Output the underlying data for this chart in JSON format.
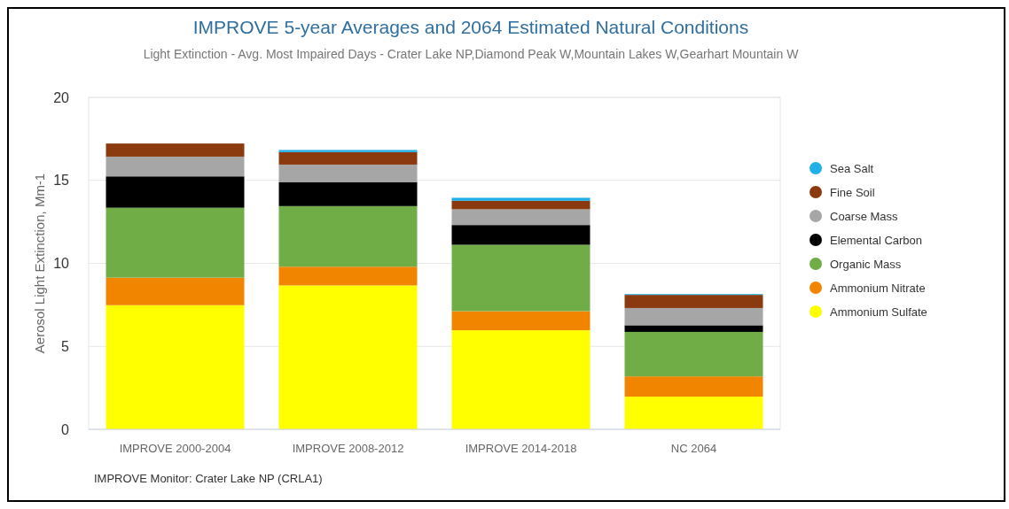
{
  "chart_data": {
    "type": "bar",
    "stacked": true,
    "title": "IMPROVE 5-year Averages and 2064 Estimated Natural Conditions",
    "subtitle": "Light Extinction - Avg. Most Impaired Days - Crater Lake NP,Diamond Peak W,Mountain Lakes W,Gearhart Mountain W",
    "ylabel": "Aerosol Light Extinction, Mm-1",
    "categories": [
      "IMPROVE 2000-2004",
      "IMPROVE 2008-2012",
      "IMPROVE 2014-2018",
      "NC 2064"
    ],
    "series": [
      {
        "name": "Ammonium Sulfate",
        "color": "#ffff00",
        "values": [
          7.48,
          8.67,
          5.97,
          1.97
        ]
      },
      {
        "name": "Ammonium Nitrate",
        "color": "#f28500",
        "values": [
          1.66,
          1.13,
          1.15,
          1.22
        ]
      },
      {
        "name": "Organic Mass",
        "color": "#70ad47",
        "values": [
          4.21,
          3.65,
          4.0,
          2.68
        ]
      },
      {
        "name": "Elemental Carbon",
        "color": "#000000",
        "values": [
          1.89,
          1.45,
          1.19,
          0.4
        ]
      },
      {
        "name": "Coarse Mass",
        "color": "#a6a6a6",
        "values": [
          1.19,
          1.05,
          0.95,
          1.04
        ]
      },
      {
        "name": "Fine Soil",
        "color": "#8b3a0f",
        "values": [
          0.79,
          0.75,
          0.51,
          0.79
        ]
      },
      {
        "name": "Sea Salt",
        "color": "#1fb0e8",
        "values": [
          null,
          0.13,
          0.18,
          0.05
        ]
      }
    ],
    "ylim": [
      0,
      20
    ],
    "yticks": [
      0,
      5,
      10,
      15,
      20
    ],
    "grid": "y",
    "legend": "right",
    "annotations": [
      "IMPROVE Monitor: Crater Lake NP (CRLA1)"
    ]
  }
}
